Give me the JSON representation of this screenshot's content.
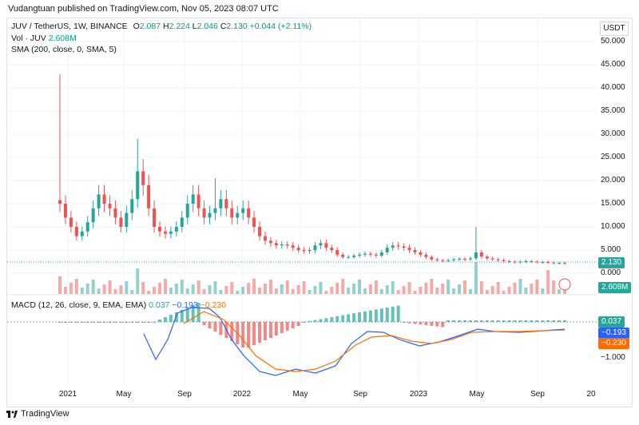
{
  "credit": "Vudangtuan published on TradingView.com, Nov 05, 2023 08:07 UTC",
  "currency": "USDT",
  "legend": {
    "symbol": "JUV / TetherUS, 1W, BINANCE",
    "o_label": "O",
    "o": "2.087",
    "h_label": "H",
    "h": "2.224",
    "l_label": "L",
    "l": "2.046",
    "c_label": "C",
    "c": "2.130",
    "change": "+0.044 (+2.11%)",
    "vol_label": "Vol · JUV",
    "vol": "2.608M",
    "sma": "SMA (200, close, 0, SMA, 5)"
  },
  "macd_legend": {
    "label": "MACD (12, 26, close, 9, EMA, EMA)",
    "hist": "0.037",
    "macd": "−0.193",
    "signal": "−0.230"
  },
  "price_axis": [
    "50.000",
    "45.000",
    "40.000",
    "35.000",
    "30.000",
    "25.000",
    "20.000",
    "15.000",
    "10.000",
    "5.000",
    "0.000"
  ],
  "price_tag": "2.130",
  "vol_tag": "2.608M",
  "macd_axis": [
    "−1.000"
  ],
  "macd_tags": {
    "hist": "0.037",
    "macd": "−0.193",
    "signal": "−0.230"
  },
  "time_axis": [
    "2021",
    "May",
    "Sep",
    "2022",
    "May",
    "Sep",
    "2023",
    "May",
    "Sep",
    "20"
  ],
  "footer_brand": "TradingView",
  "colors": {
    "up": "#26a69a",
    "down": "#ef5350",
    "macd": "#2962ff",
    "signal": "#ff6d00"
  },
  "chart_data": {
    "type": "candlestick",
    "price_ylim": [
      0,
      52
    ],
    "weekly_close_approx": [
      15,
      12,
      10,
      8,
      9,
      11,
      14,
      17,
      15,
      14,
      12,
      10,
      13,
      16,
      22,
      19,
      14,
      10,
      9,
      8.5,
      9,
      10,
      12,
      15,
      17,
      14,
      12,
      13,
      14,
      16,
      14,
      12,
      13,
      14,
      12,
      10,
      8,
      7,
      6.5,
      6,
      6.2,
      6,
      5.5,
      5,
      4.8,
      5,
      6,
      6.5,
      5.5,
      5,
      4,
      3.5,
      3.5,
      3.8,
      4,
      4.2,
      4,
      3.8,
      4.5,
      5.5,
      6,
      5.8,
      5.5,
      5,
      4.5,
      4,
      3.5,
      3,
      2.8,
      2.7,
      2.8,
      3,
      3.1,
      3,
      3.2,
      4.5,
      3.6,
      3.2,
      3,
      2.8,
      2.6,
      2.5,
      2.4,
      2.5,
      2.6,
      2.5,
      2.4,
      2.4,
      2.3,
      2.2,
      2.2,
      2.13
    ],
    "macd_ylim": [
      -1.5,
      1.0
    ]
  }
}
